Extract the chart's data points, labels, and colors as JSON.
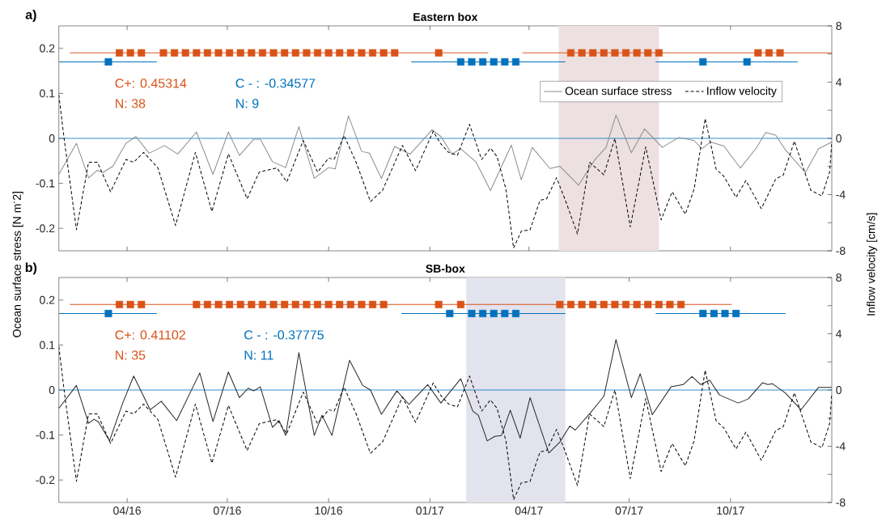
{
  "chart_data": [
    {
      "type": "line",
      "title": "Eastern box",
      "ylabel": "Ocean surface stress [N m$^{-}$2]",
      "y2label": "Inflow velocity [cm/s]",
      "xlim": [
        "2016-01-30",
        "2018-01-01"
      ],
      "xticks": [
        {
          "value": "2016-04-01",
          "label": null
        },
        {
          "value": "2016-07-01",
          "label": null
        },
        {
          "value": "2016-10-01",
          "label": null
        },
        {
          "value": "2017-01-01",
          "label": null
        },
        {
          "value": "2017-04-01",
          "label": null
        },
        {
          "value": "2017-07-01",
          "label": null
        },
        {
          "value": "2017-10-01",
          "label": null
        }
      ],
      "tick_labels": "y",
      "ylim": [
        -0.25,
        0.25
      ],
      "yticks": [
        -0.2,
        -0.1,
        0,
        0.1,
        0.2
      ],
      "y2lim": [
        -8,
        8
      ],
      "y2ticks": [
        -8,
        {
          "value": -6,
          "label": null
        },
        -4,
        {
          "value": -2,
          "label": null
        },
        0,
        {
          "value": 2,
          "label": null
        },
        4,
        {
          "value": 6,
          "label": null
        },
        8
      ],
      "legend": "top right",
      "bands": [
        {
          "axis": "x",
          "from": "2017-04-28",
          "to": "2017-07-28",
          "color": "#ede0e0"
        }
      ],
      "ref_lines": [
        {
          "axis": "y",
          "value": 0,
          "color": "#0072bd"
        }
      ],
      "annotations": [
        "a)",
        "C+: 0.45314",
        "N: 38",
        "C - : -0.34577",
        "N: 9"
      ],
      "series": [
        {
          "type": "line",
          "name": "Ocean surface stress",
          "color": "#8c8c8c",
          "line_style": "solid",
          "x": [
            "2016-01-30",
            "2016-02-15",
            "2016-02-26",
            "2016-03-05",
            "2016-03-10",
            "2016-03-19",
            "2016-03-31",
            "2016-04-09",
            "2016-04-21",
            "2016-05-05",
            "2016-05-17",
            "2016-06-03",
            "2016-06-18",
            "2016-07-02",
            "2016-07-12",
            "2016-07-25",
            "2016-07-31",
            "2016-08-11",
            "2016-08-23",
            "2016-09-04",
            "2016-09-18",
            "2016-10-01",
            "2016-10-07",
            "2016-10-19",
            "2016-10-31",
            "2016-11-07",
            "2016-11-18",
            "2016-11-30",
            "2016-12-14",
            "2017-01-03",
            "2017-01-11",
            "2017-01-21",
            "2017-01-29",
            "2017-02-12",
            "2017-02-25",
            "2017-03-16",
            "2017-03-25",
            "2017-04-04",
            "2017-04-20",
            "2017-04-29",
            "2017-05-16",
            "2017-05-31",
            "2017-06-10",
            "2017-06-19",
            "2017-07-03",
            "2017-07-15",
            "2017-07-31",
            "2017-08-15",
            "2017-08-29",
            "2017-09-05",
            "2017-09-13",
            "2017-09-25",
            "2017-10-10",
            "2017-10-24",
            "2017-11-02",
            "2017-11-11",
            "2017-11-20",
            "2017-12-08",
            "2017-12-20",
            "2018-01-01"
          ],
          "values": [
            -0.08,
            -0.011,
            -0.088,
            -0.071,
            -0.076,
            -0.062,
            -0.011,
            0.004,
            -0.033,
            -0.016,
            -0.035,
            0.014,
            -0.08,
            0.014,
            -0.038,
            -0.002,
            -0.002,
            -0.052,
            -0.065,
            0.026,
            -0.089,
            -0.065,
            -0.068,
            0.05,
            -0.029,
            -0.033,
            -0.089,
            -0.018,
            -0.035,
            0.019,
            0.004,
            -0.035,
            -0.023,
            -0.053,
            -0.116,
            -0.015,
            -0.092,
            -0.02,
            -0.067,
            -0.062,
            -0.104,
            -0.047,
            -0.02,
            0.052,
            -0.032,
            0.021,
            -0.02,
            0.002,
            -0.005,
            -0.023,
            -0.008,
            -0.017,
            -0.066,
            -0.023,
            0.013,
            0.007,
            -0.026,
            -0.076,
            -0.023,
            -0.008
          ]
        },
        {
          "type": "line",
          "name": "Inflow velocity",
          "color": "#000000",
          "line_style": "dashed",
          "axis": "y2",
          "x": [
            "2016-01-30",
            "2016-02-04",
            "2016-02-15",
            "2016-02-26",
            "2016-03-05",
            "2016-03-17",
            "2016-03-31",
            "2016-04-07",
            "2016-04-16",
            "2016-04-29",
            "2016-05-15",
            "2016-06-02",
            "2016-06-17",
            "2016-07-02",
            "2016-07-19",
            "2016-07-30",
            "2016-08-15",
            "2016-08-24",
            "2016-09-08",
            "2016-09-21",
            "2016-10-01",
            "2016-10-06",
            "2016-10-15",
            "2016-10-26",
            "2016-11-08",
            "2016-11-19",
            "2016-12-07",
            "2016-12-19",
            "2017-01-04",
            "2017-01-11",
            "2017-01-18",
            "2017-01-26",
            "2017-02-06",
            "2017-02-17",
            "2017-02-25",
            "2017-03-03",
            "2017-03-11",
            "2017-03-18",
            "2017-03-25",
            "2017-04-02",
            "2017-04-11",
            "2017-04-17",
            "2017-04-26",
            "2017-05-04",
            "2017-05-15",
            "2017-05-26",
            "2017-06-08",
            "2017-06-18",
            "2017-07-02",
            "2017-07-16",
            "2017-07-30",
            "2017-08-09",
            "2017-08-21",
            "2017-08-29",
            "2017-09-08",
            "2017-09-18",
            "2017-09-25",
            "2017-10-06",
            "2017-10-15",
            "2017-10-29",
            "2017-11-11",
            "2017-11-18",
            "2017-11-28",
            "2017-12-13",
            "2017-12-23",
            "2017-12-30",
            "2018-01-01"
          ],
          "values": [
            3.1,
            -0.15,
            -6.5,
            -1.7,
            -1.7,
            -3.8,
            -1.5,
            -1.7,
            -1.0,
            -2.1,
            -6.2,
            -1.0,
            -5.2,
            -1.1,
            -4.3,
            -2.4,
            -2.1,
            -3.1,
            -0.15,
            -2.4,
            -1.4,
            -1.5,
            0.2,
            -1.7,
            -4.5,
            -3.7,
            -0.5,
            -2.3,
            0.5,
            -0.4,
            -1.0,
            -1.2,
            1.0,
            -1.5,
            -0.7,
            -1.3,
            -3.6,
            -7.8,
            -6.6,
            -6.5,
            -4.4,
            -4.3,
            -2.8,
            -4.4,
            -6.8,
            -1.7,
            -2.6,
            0.0,
            -6.3,
            -0.6,
            -5.8,
            -3.8,
            -5.4,
            -3.6,
            1.4,
            -2.2,
            -2.7,
            -4.2,
            -3.0,
            -5.0,
            -2.9,
            -2.6,
            -0.2,
            -3.7,
            -4.1,
            -2.4,
            -0.3
          ]
        },
        {
          "type": "line",
          "color": "#d95319",
          "line_style": "solid",
          "x": [
            "2016-02-09",
            "2017-02-23",
            "2017-03-10",
            "2017-03-26",
            "2018-01-01"
          ],
          "values": [
            0.19,
            0.19,
            null,
            0.19,
            0.19
          ]
        },
        {
          "type": "scatter",
          "color": "#d95319",
          "marker": "square",
          "x": [
            "2016-03-25",
            "2016-04-04",
            "2016-04-14",
            "2016-05-04",
            "2016-05-14",
            "2016-05-24",
            "2016-06-03",
            "2016-06-13",
            "2016-06-23",
            "2016-07-03",
            "2016-07-13",
            "2016-07-23",
            "2016-08-02",
            "2016-08-12",
            "2016-08-22",
            "2016-09-01",
            "2016-09-11",
            "2016-09-21",
            "2016-10-01",
            "2016-10-11",
            "2016-10-21",
            "2016-10-31",
            "2016-11-10",
            "2016-11-20",
            "2016-11-30",
            "2017-01-09",
            "2017-05-09",
            "2017-05-19",
            "2017-05-29",
            "2017-06-08",
            "2017-06-18",
            "2017-06-28",
            "2017-07-08",
            "2017-07-18",
            "2017-07-28",
            "2017-10-26",
            "2017-11-05",
            "2017-11-15"
          ],
          "values": [
            0.19,
            0.19,
            0.19,
            0.19,
            0.19,
            0.19,
            0.19,
            0.19,
            0.19,
            0.19,
            0.19,
            0.19,
            0.19,
            0.19,
            0.19,
            0.19,
            0.19,
            0.19,
            0.19,
            0.19,
            0.19,
            0.19,
            0.19,
            0.19,
            0.19,
            0.19,
            0.19,
            0.19,
            0.19,
            0.19,
            0.19,
            0.19,
            0.19,
            0.19,
            0.19,
            0.19,
            0.19,
            0.19
          ]
        },
        {
          "type": "line",
          "color": "#0072bd",
          "line_style": "solid",
          "x": [
            "2016-01-30",
            "2016-04-28",
            "2016-08-01",
            "2016-12-15",
            "2017-05-04",
            "2017-06-15",
            "2017-07-25",
            "2017-12-01"
          ],
          "values": [
            0.17,
            0.17,
            null,
            0.17,
            0.17,
            null,
            0.17,
            0.17
          ]
        },
        {
          "type": "scatter",
          "color": "#0072bd",
          "marker": "square",
          "x": [
            "2016-03-15",
            "2017-01-29",
            "2017-02-08",
            "2017-02-18",
            "2017-02-28",
            "2017-03-10",
            "2017-03-20",
            "2017-09-06",
            "2017-10-16"
          ],
          "values": [
            0.17,
            0.17,
            0.17,
            0.17,
            0.17,
            0.17,
            0.17,
            0.17,
            0.17
          ]
        }
      ]
    },
    {
      "type": "line",
      "title": "SB-box",
      "xlim": [
        "2016-01-30",
        "2018-01-01"
      ],
      "xticks": [
        {
          "value": "2016-04-01",
          "label": "04/16"
        },
        {
          "value": "2016-07-01",
          "label": "07/16"
        },
        {
          "value": "2016-10-01",
          "label": "10/16"
        },
        {
          "value": "2017-01-01",
          "label": "01/17"
        },
        {
          "value": "2017-04-01",
          "label": "04/17"
        },
        {
          "value": "2017-07-01",
          "label": "07/17"
        },
        {
          "value": "2017-10-01",
          "label": "10/17"
        }
      ],
      "ylim": [
        -0.25,
        0.25
      ],
      "yticks": [
        -0.2,
        -0.1,
        0,
        0.1,
        0.2
      ],
      "y2lim": [
        -8,
        8
      ],
      "y2ticks": [
        -8,
        {
          "value": -6,
          "label": null
        },
        -4,
        {
          "value": -2,
          "label": null
        },
        0,
        {
          "value": 2,
          "label": null
        },
        4,
        {
          "value": 6,
          "label": null
        },
        8
      ],
      "bands": [
        {
          "axis": "x",
          "from": "2017-02-03",
          "to": "2017-05-04",
          "color": "#e3e3ee"
        }
      ],
      "ref_lines": [
        {
          "axis": "y",
          "value": 0,
          "color": "#0072bd"
        }
      ],
      "annotations": [
        "b)",
        "C+: 0.41102",
        "N: 35",
        "C - : -0.37775",
        "N: 11"
      ],
      "series": [
        {
          "type": "line",
          "color": "#262626",
          "line_style": "solid",
          "x": [
            "2016-01-30",
            "2016-02-15",
            "2016-02-26",
            "2016-03-02",
            "2016-03-06",
            "2016-03-16",
            "2016-03-28",
            "2016-04-07",
            "2016-04-22",
            "2016-05-02",
            "2016-05-16",
            "2016-06-06",
            "2016-06-18",
            "2016-07-02",
            "2016-07-12",
            "2016-07-20",
            "2016-07-25",
            "2016-07-31",
            "2016-08-11",
            "2016-08-17",
            "2016-08-23",
            "2016-09-04",
            "2016-09-18",
            "2016-09-25",
            "2016-10-04",
            "2016-10-20",
            "2016-11-01",
            "2016-11-08",
            "2016-11-18",
            "2016-12-02",
            "2016-12-13",
            "2016-12-30",
            "2017-01-11",
            "2017-01-29",
            "2017-02-09",
            "2017-02-14",
            "2017-02-22",
            "2017-03-01",
            "2017-03-07",
            "2017-03-15",
            "2017-03-24",
            "2017-04-02",
            "2017-04-19",
            "2017-04-29",
            "2017-05-08",
            "2017-05-13",
            "2017-05-26",
            "2017-06-08",
            "2017-06-19",
            "2017-07-03",
            "2017-07-11",
            "2017-07-22",
            "2017-08-08",
            "2017-08-19",
            "2017-08-27",
            "2017-09-04",
            "2017-09-12",
            "2017-09-21",
            "2017-10-08",
            "2017-10-17",
            "2017-10-30",
            "2017-11-04",
            "2017-11-08",
            "2017-11-20",
            "2017-12-04",
            "2017-12-20",
            "2018-01-01"
          ],
          "values": [
            -0.041,
            0.01,
            -0.074,
            -0.065,
            -0.071,
            -0.113,
            -0.029,
            0.031,
            -0.044,
            -0.025,
            -0.068,
            0.038,
            -0.07,
            0.04,
            -0.017,
            0.004,
            -0.002,
            0.007,
            -0.083,
            -0.068,
            -0.101,
            0.083,
            -0.101,
            -0.056,
            -0.101,
            0.066,
            0.01,
            0.0,
            -0.054,
            -0.002,
            -0.032,
            0.012,
            -0.029,
            0.025,
            -0.047,
            -0.056,
            -0.113,
            -0.103,
            -0.101,
            -0.045,
            -0.107,
            -0.017,
            -0.14,
            -0.116,
            -0.08,
            -0.089,
            -0.053,
            -0.014,
            0.112,
            -0.017,
            0.036,
            -0.055,
            0.007,
            0.012,
            0.03,
            0.012,
            0.022,
            -0.011,
            -0.029,
            -0.02,
            0.016,
            0.012,
            0.014,
            -0.007,
            -0.044,
            0.006,
            0.006
          ]
        },
        {
          "type": "line",
          "color": "#000000",
          "line_style": "dashed",
          "axis": "y2",
          "x": [
            "2016-01-30",
            "2016-02-04",
            "2016-02-15",
            "2016-02-26",
            "2016-03-05",
            "2016-03-17",
            "2016-03-31",
            "2016-04-07",
            "2016-04-16",
            "2016-04-29",
            "2016-05-15",
            "2016-06-02",
            "2016-06-17",
            "2016-07-02",
            "2016-07-19",
            "2016-07-30",
            "2016-08-15",
            "2016-08-24",
            "2016-09-08",
            "2016-09-21",
            "2016-10-01",
            "2016-10-06",
            "2016-10-15",
            "2016-10-26",
            "2016-11-08",
            "2016-11-19",
            "2016-12-07",
            "2016-12-19",
            "2017-01-04",
            "2017-01-11",
            "2017-01-18",
            "2017-01-26",
            "2017-02-06",
            "2017-02-17",
            "2017-02-25",
            "2017-03-03",
            "2017-03-11",
            "2017-03-18",
            "2017-03-25",
            "2017-04-02",
            "2017-04-11",
            "2017-04-17",
            "2017-04-26",
            "2017-05-04",
            "2017-05-15",
            "2017-05-26",
            "2017-06-08",
            "2017-06-18",
            "2017-07-02",
            "2017-07-16",
            "2017-07-30",
            "2017-08-09",
            "2017-08-21",
            "2017-08-29",
            "2017-09-08",
            "2017-09-18",
            "2017-09-25",
            "2017-10-06",
            "2017-10-15",
            "2017-10-29",
            "2017-11-11",
            "2017-11-18",
            "2017-11-28",
            "2017-12-13",
            "2017-12-23",
            "2017-12-30",
            "2018-01-01"
          ],
          "values": [
            3.1,
            -0.15,
            -6.5,
            -1.7,
            -1.7,
            -3.8,
            -1.5,
            -1.7,
            -1.0,
            -2.1,
            -6.2,
            -1.0,
            -5.2,
            -1.1,
            -4.3,
            -2.4,
            -2.1,
            -3.1,
            -0.15,
            -2.4,
            -1.4,
            -1.5,
            0.2,
            -1.7,
            -4.5,
            -3.7,
            -0.5,
            -2.3,
            0.5,
            -0.4,
            -1.0,
            -1.2,
            1.0,
            -1.5,
            -0.7,
            -1.3,
            -3.6,
            -7.8,
            -6.6,
            -6.5,
            -4.4,
            -4.3,
            -2.8,
            -4.4,
            -6.8,
            -1.7,
            -2.6,
            0.0,
            -6.3,
            -0.6,
            -5.8,
            -3.8,
            -5.4,
            -3.6,
            1.4,
            -2.2,
            -2.7,
            -4.2,
            -3.0,
            -5.0,
            -2.9,
            -2.6,
            -0.2,
            -3.7,
            -4.1,
            -2.4,
            -0.3
          ]
        },
        {
          "type": "line",
          "color": "#d95319",
          "line_style": "solid",
          "x": [
            "2016-02-09",
            "2017-10-02"
          ],
          "values": [
            0.19,
            0.19
          ]
        },
        {
          "type": "scatter",
          "color": "#d95319",
          "marker": "square",
          "x": [
            "2016-03-25",
            "2016-04-04",
            "2016-04-14",
            "2016-06-03",
            "2016-06-13",
            "2016-06-23",
            "2016-07-03",
            "2016-07-13",
            "2016-07-23",
            "2016-08-02",
            "2016-08-12",
            "2016-08-22",
            "2016-09-01",
            "2016-09-11",
            "2016-09-21",
            "2016-10-01",
            "2016-10-11",
            "2016-10-21",
            "2016-10-31",
            "2016-11-10",
            "2016-11-20",
            "2017-01-09",
            "2017-01-29",
            "2017-04-29",
            "2017-05-09",
            "2017-05-19",
            "2017-05-29",
            "2017-06-08",
            "2017-06-18",
            "2017-06-28",
            "2017-07-08",
            "2017-07-18",
            "2017-07-28",
            "2017-08-07",
            "2017-08-17"
          ],
          "values": [
            0.19,
            0.19,
            0.19,
            0.19,
            0.19,
            0.19,
            0.19,
            0.19,
            0.19,
            0.19,
            0.19,
            0.19,
            0.19,
            0.19,
            0.19,
            0.19,
            0.19,
            0.19,
            0.19,
            0.19,
            0.19,
            0.19,
            0.19,
            0.19,
            0.19,
            0.19,
            0.19,
            0.19,
            0.19,
            0.19,
            0.19,
            0.19,
            0.19,
            0.19,
            0.19
          ]
        },
        {
          "type": "line",
          "color": "#0072bd",
          "line_style": "solid",
          "x": [
            "2016-01-30",
            "2016-04-28",
            "2016-08-01",
            "2016-12-06",
            "2017-05-04",
            "2017-06-15",
            "2017-07-25",
            "2017-11-20"
          ],
          "values": [
            0.17,
            0.17,
            null,
            0.17,
            0.17,
            null,
            0.17,
            0.17
          ]
        },
        {
          "type": "scatter",
          "color": "#0072bd",
          "marker": "square",
          "x": [
            "2016-03-15",
            "2017-01-19",
            "2017-02-08",
            "2017-02-18",
            "2017-02-28",
            "2017-03-10",
            "2017-03-20",
            "2017-09-06",
            "2017-09-16",
            "2017-09-26",
            "2017-10-06"
          ],
          "values": [
            0.17,
            0.17,
            0.17,
            0.17,
            0.17,
            0.17,
            0.17,
            0.17,
            0.17,
            0.17,
            0.17
          ]
        }
      ]
    }
  ]
}
